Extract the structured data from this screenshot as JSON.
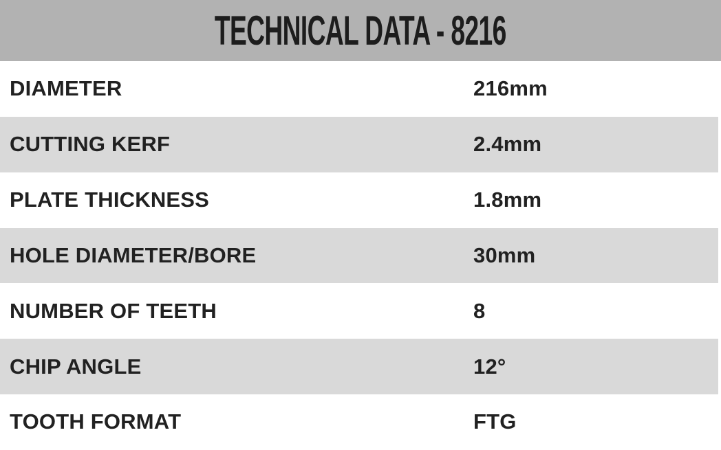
{
  "header": {
    "title": "TECHNICAL DATA - 8216"
  },
  "table": {
    "rows": [
      {
        "label": "DIAMETER",
        "value": "216mm"
      },
      {
        "label": "CUTTING KERF",
        "value": "2.4mm"
      },
      {
        "label": "PLATE THICKNESS",
        "value": "1.8mm"
      },
      {
        "label": "HOLE DIAMETER/BORE",
        "value": "30mm"
      },
      {
        "label": "NUMBER OF TEETH",
        "value": "8"
      },
      {
        "label": "CHIP ANGLE",
        "value": "12°"
      },
      {
        "label": "TOOTH FORMAT",
        "value": "FTG"
      }
    ]
  },
  "colors": {
    "header_bg": "#b2b2b2",
    "header_text": "#1d1d1d",
    "row_bg": "#ffffff",
    "row_alt_bg": "#d9d9d9",
    "body_text": "#212121"
  }
}
